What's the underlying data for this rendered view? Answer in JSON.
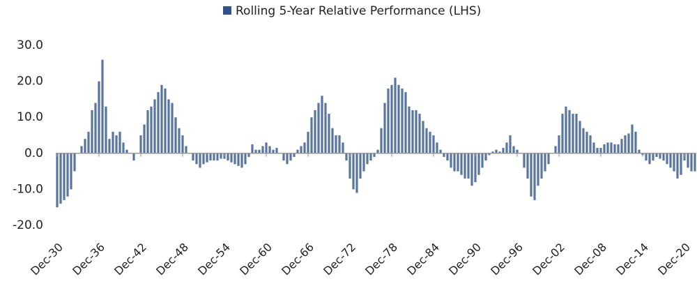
{
  "chart_data": {
    "type": "bar",
    "series": [
      {
        "name": "Rolling 5-Year Relative Performance (LHS)",
        "color": "#2f5288",
        "values": [
          -15,
          -14,
          -13,
          -12,
          -10,
          -5,
          0,
          2,
          4,
          6,
          12,
          14,
          20,
          26,
          13,
          4,
          6,
          5,
          6,
          3,
          1,
          0,
          -2,
          0,
          5,
          8,
          12,
          13,
          15,
          17,
          19,
          18,
          15,
          14,
          10,
          7,
          5,
          2,
          0,
          -2,
          -3,
          -4,
          -3,
          -2.5,
          -2,
          -2,
          -2,
          -1.5,
          -1.5,
          -2,
          -2.5,
          -3,
          -3.5,
          -4,
          -3,
          -1,
          2.5,
          1,
          1,
          2,
          3,
          2,
          1,
          1.5,
          0,
          -2,
          -3,
          -2,
          -1,
          1,
          2,
          3,
          6,
          10,
          12,
          14,
          16,
          14,
          11,
          7,
          5,
          5,
          3,
          -2,
          -7,
          -10,
          -11,
          -7,
          -5,
          -3,
          -2,
          -1,
          1,
          7,
          14,
          18,
          19,
          21,
          19,
          18,
          17,
          13,
          12,
          12,
          11,
          9,
          7,
          6,
          5,
          3,
          1,
          -1,
          -2,
          -4,
          -5,
          -5,
          -6,
          -7,
          -7,
          -9,
          -8,
          -6,
          -4,
          -2,
          -0.5,
          0.5,
          1,
          0.5,
          1.5,
          3,
          5,
          2,
          1,
          0,
          -4,
          -7,
          -12,
          -13,
          -9,
          -7,
          -5,
          -3,
          0,
          2,
          5,
          11,
          13,
          12,
          11,
          11,
          9,
          7,
          6,
          5,
          3,
          1.5,
          1.5,
          2.5,
          3,
          3,
          2.5,
          2.5,
          4,
          5,
          5.5,
          8,
          6,
          1,
          -0.5,
          -2,
          -3,
          -2,
          -1,
          -1.5,
          -2,
          -3,
          -4,
          -5,
          -7,
          -6,
          -2,
          -4,
          -5,
          -5
        ]
      }
    ],
    "categories": [
      "Dec-30",
      null,
      null,
      null,
      null,
      null,
      null,
      null,
      null,
      null,
      null,
      null,
      "Dec-36",
      null,
      null,
      null,
      null,
      null,
      null,
      null,
      null,
      null,
      null,
      null,
      "Dec-42",
      null,
      null,
      null,
      null,
      null,
      null,
      null,
      null,
      null,
      null,
      null,
      "Dec-48",
      null,
      null,
      null,
      null,
      null,
      null,
      null,
      null,
      null,
      null,
      null,
      "Dec-54",
      null,
      null,
      null,
      null,
      null,
      null,
      null,
      null,
      null,
      null,
      null,
      "Dec-60",
      null,
      null,
      null,
      null,
      null,
      null,
      null,
      null,
      null,
      null,
      null,
      "Dec-66",
      null,
      null,
      null,
      null,
      null,
      null,
      null,
      null,
      null,
      null,
      null,
      "Dec-72",
      null,
      null,
      null,
      null,
      null,
      null,
      null,
      null,
      null,
      null,
      null,
      "Dec-78",
      null,
      null,
      null,
      null,
      null,
      null,
      null,
      null,
      null,
      null,
      null,
      "Dec-84",
      null,
      null,
      null,
      null,
      null,
      null,
      null,
      null,
      null,
      null,
      null,
      "Dec-90",
      null,
      null,
      null,
      null,
      null,
      null,
      null,
      null,
      null,
      null,
      null,
      "Dec-96",
      null,
      null,
      null,
      null,
      null,
      null,
      null,
      null,
      null,
      null,
      null,
      "Dec-02",
      null,
      null,
      null,
      null,
      null,
      null,
      null,
      null,
      null,
      null,
      null,
      "Dec-08",
      null,
      null,
      null,
      null,
      null,
      null,
      null,
      null,
      null,
      null,
      null,
      "Dec-14",
      null,
      null,
      null,
      null,
      null,
      null,
      null,
      null,
      null,
      null,
      null,
      "Dec-20",
      null,
      null,
      null
    ],
    "ylim": [
      -20,
      30
    ],
    "yticks": [
      {
        "value": -20,
        "label": "-20.0"
      },
      {
        "value": -10,
        "label": "-10.0"
      },
      {
        "value": 0,
        "label": "0.0"
      },
      {
        "value": 10,
        "label": "10.0"
      },
      {
        "value": 20,
        "label": "20.0"
      },
      {
        "value": 30,
        "label": "30.0"
      }
    ],
    "legend": "top"
  }
}
